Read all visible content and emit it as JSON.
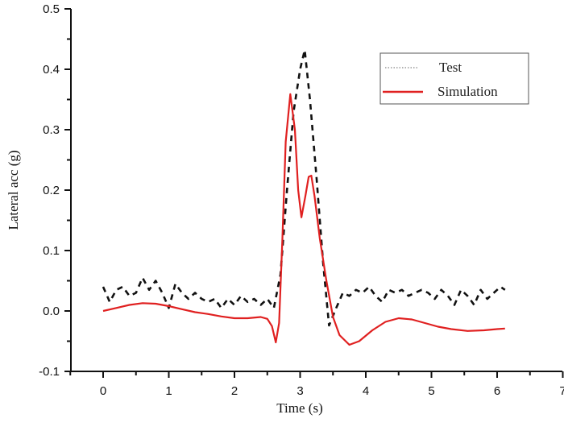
{
  "chart_data": {
    "type": "line",
    "title": "",
    "xlabel": "Time (s)",
    "ylabel": "Lateral acc (g)",
    "xlim": [
      -0.5,
      7
    ],
    "ylim": [
      -0.1,
      0.5
    ],
    "xticks": [
      0,
      1,
      2,
      3,
      4,
      5,
      6,
      7
    ],
    "xtick_labels": [
      "0",
      "1",
      "2",
      "3",
      "4",
      "5",
      "6",
      "7"
    ],
    "yticks": [
      -0.1,
      0.0,
      0.1,
      0.2,
      0.3,
      0.4,
      0.5
    ],
    "ytick_labels": [
      "-0.1",
      "0.0",
      "0.1",
      "0.2",
      "0.3",
      "0.4",
      "0.5"
    ],
    "grid": false,
    "legend_position": "top-right",
    "series": [
      {
        "name": "Test",
        "style": "dashed",
        "color": "#111111",
        "x": [
          0.0,
          0.1,
          0.2,
          0.3,
          0.4,
          0.5,
          0.6,
          0.7,
          0.8,
          0.9,
          1.0,
          1.1,
          1.2,
          1.3,
          1.4,
          1.5,
          1.6,
          1.7,
          1.8,
          1.9,
          2.0,
          2.1,
          2.2,
          2.3,
          2.4,
          2.5,
          2.6,
          2.7,
          2.8,
          2.9,
          3.0,
          3.07,
          3.15,
          3.25,
          3.35,
          3.44,
          3.55,
          3.65,
          3.75,
          3.85,
          3.95,
          4.05,
          4.15,
          4.25,
          4.35,
          4.45,
          4.55,
          4.65,
          4.75,
          4.85,
          4.95,
          5.05,
          5.15,
          5.25,
          5.35,
          5.45,
          5.55,
          5.65,
          5.75,
          5.85,
          5.95,
          6.05,
          6.12
        ],
        "y": [
          0.04,
          0.015,
          0.035,
          0.04,
          0.025,
          0.03,
          0.055,
          0.035,
          0.05,
          0.03,
          0.005,
          0.045,
          0.03,
          0.02,
          0.03,
          0.02,
          0.015,
          0.02,
          0.005,
          0.02,
          0.01,
          0.025,
          0.015,
          0.02,
          0.01,
          0.02,
          0.005,
          0.06,
          0.2,
          0.33,
          0.4,
          0.432,
          0.35,
          0.22,
          0.08,
          -0.024,
          0.005,
          0.03,
          0.025,
          0.035,
          0.03,
          0.04,
          0.025,
          0.015,
          0.035,
          0.03,
          0.035,
          0.025,
          0.03,
          0.035,
          0.03,
          0.02,
          0.035,
          0.025,
          0.01,
          0.035,
          0.025,
          0.01,
          0.035,
          0.02,
          0.03,
          0.04,
          0.035
        ]
      },
      {
        "name": "Simulation",
        "style": "solid",
        "color": "#e02020",
        "x": [
          0.0,
          0.2,
          0.4,
          0.6,
          0.8,
          1.0,
          1.2,
          1.4,
          1.6,
          1.8,
          2.0,
          2.2,
          2.4,
          2.5,
          2.57,
          2.63,
          2.68,
          2.73,
          2.78,
          2.85,
          2.92,
          2.97,
          3.02,
          3.08,
          3.13,
          3.17,
          3.22,
          3.3,
          3.4,
          3.5,
          3.6,
          3.75,
          3.9,
          4.1,
          4.3,
          4.5,
          4.7,
          4.9,
          5.1,
          5.3,
          5.55,
          5.8,
          6.0,
          6.12
        ],
        "y": [
          0.0,
          0.005,
          0.01,
          0.013,
          0.012,
          0.008,
          0.003,
          -0.002,
          -0.005,
          -0.009,
          -0.012,
          -0.012,
          -0.01,
          -0.013,
          -0.025,
          -0.052,
          -0.02,
          0.12,
          0.28,
          0.359,
          0.3,
          0.2,
          0.155,
          0.19,
          0.222,
          0.224,
          0.19,
          0.12,
          0.05,
          -0.01,
          -0.04,
          -0.056,
          -0.05,
          -0.032,
          -0.018,
          -0.012,
          -0.014,
          -0.02,
          -0.026,
          -0.03,
          -0.033,
          -0.032,
          -0.03,
          -0.029
        ]
      }
    ]
  }
}
